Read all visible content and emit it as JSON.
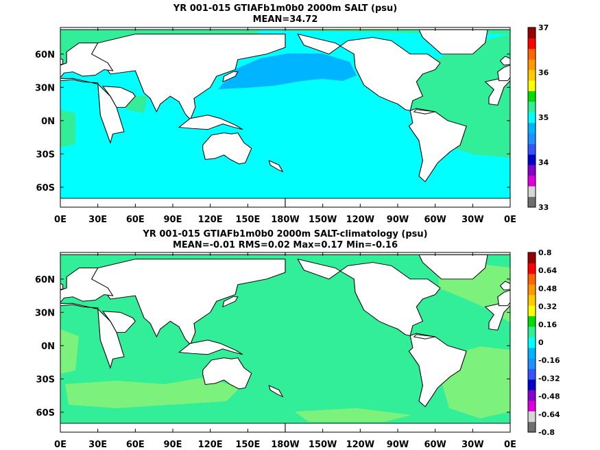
{
  "chart_data": [
    {
      "type": "heatmap",
      "title": "YR 001-015 GTIAFb1m0b0 2000m SALT (psu)",
      "subtitle": "MEAN=34.72",
      "x_tick_labels": [
        "0E",
        "30E",
        "60E",
        "90E",
        "120E",
        "150E",
        "180W",
        "150W",
        "120W",
        "90W",
        "60W",
        "30W",
        "0E"
      ],
      "y_tick_labels": [
        "60N",
        "30N",
        "0N",
        "30S",
        "60S"
      ],
      "xlim": [
        0,
        360
      ],
      "ylim": [
        -78,
        84
      ],
      "colorbar": {
        "labels": [
          "37",
          "36",
          "35",
          "34",
          "33"
        ],
        "min": 33,
        "max": 37,
        "colors": [
          "#6e6e6e",
          "#d7d7d7",
          "#dd00dd",
          "#8800cc",
          "#0000cc",
          "#3355ff",
          "#1e90ff",
          "#00b4ff",
          "#00ffff",
          "#33ee99",
          "#00dd00",
          "#ffff00",
          "#ffcc00",
          "#ff9900",
          "#ff6600",
          "#ff0000",
          "#990000"
        ]
      },
      "colors": {
        "ocean": "#00ffff",
        "north_pacific": "#00b4ff",
        "atlantic": "#33ee99",
        "land": "#ffffff"
      }
    },
    {
      "type": "heatmap",
      "title": "YR 001-015 GTIAFb1m0b0 2000m SALT-climatology (psu)",
      "subtitle": "MEAN=-0.01   RMS=0.02   Max=0.17   Min=-0.16",
      "x_tick_labels": [
        "0E",
        "30E",
        "60E",
        "90E",
        "120E",
        "150E",
        "180W",
        "150W",
        "120W",
        "90W",
        "60W",
        "30W",
        "0E"
      ],
      "y_tick_labels": [
        "60N",
        "30N",
        "0N",
        "30S",
        "60S"
      ],
      "xlim": [
        0,
        360
      ],
      "ylim": [
        -78,
        84
      ],
      "colorbar": {
        "labels": [
          "0.8",
          "0.64",
          "0.48",
          "0.32",
          "0.16",
          "0",
          "-0.16",
          "-0.32",
          "-0.48",
          "-0.64",
          "-0.8"
        ],
        "min": -0.8,
        "max": 0.8,
        "colors": [
          "#6e6e6e",
          "#d7d7d7",
          "#dd00dd",
          "#8800cc",
          "#0000cc",
          "#3355ff",
          "#1e90ff",
          "#00b4ff",
          "#00ffff",
          "#33ee99",
          "#00dd00",
          "#ffff00",
          "#ffcc00",
          "#ff9900",
          "#ff6600",
          "#ff0000",
          "#990000"
        ]
      },
      "colors": {
        "ocean": "#33ee99",
        "patches": "#7cf27c",
        "land": "#ffffff"
      }
    }
  ]
}
